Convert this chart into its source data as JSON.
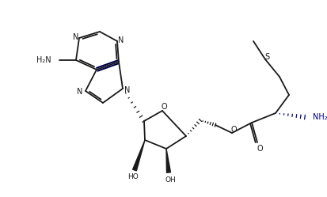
{
  "bg": "#ffffff",
  "lc": "#1a1a1a",
  "db_color": "#00004a",
  "nh2_color": "#00008b",
  "figsize": [
    4.14,
    2.49
  ],
  "dpi": 100,
  "xlim": [
    0,
    414
  ],
  "ylim": [
    0,
    249
  ]
}
